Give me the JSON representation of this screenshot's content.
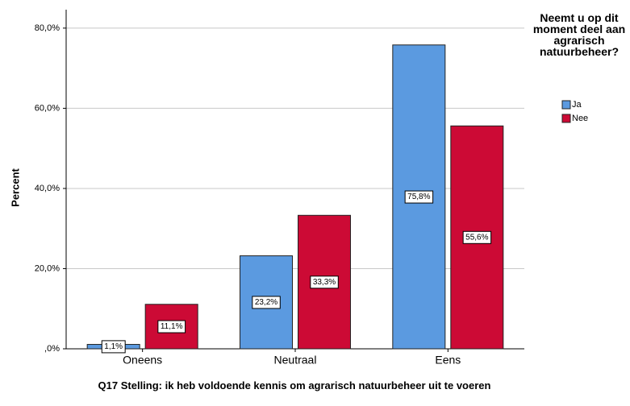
{
  "chart_data": {
    "type": "bar",
    "x_label": "Q17 Stelling: ik heb voldoende kennis om agrarisch natuurbeheer uit te voeren",
    "y_label": "Percent",
    "legend_title": "Neemt u op dit moment deel aan agrarisch natuurbeheer?",
    "legend_position": "right",
    "categories": [
      "Oneens",
      "Neutraal",
      "Eens"
    ],
    "series": [
      {
        "name": "Ja",
        "color": "#5b9ae0",
        "values": [
          1.1,
          23.2,
          75.8
        ],
        "value_labels": [
          "1,1%",
          "23,2%",
          "75,8%"
        ]
      },
      {
        "name": "Nee",
        "color": "#cc0a35",
        "values": [
          11.1,
          33.3,
          55.6
        ],
        "value_labels": [
          "11,1%",
          "33,3%",
          "55,6%"
        ]
      }
    ],
    "ylim": [
      0,
      84.6
    ],
    "yticks": [
      {
        "value": 0,
        "label": ",0%"
      },
      {
        "value": 20,
        "label": "20,0%"
      },
      {
        "value": 40,
        "label": "40,0%"
      },
      {
        "value": 60,
        "label": "60,0%"
      },
      {
        "value": 80,
        "label": "80,0%"
      }
    ],
    "grid": true
  }
}
